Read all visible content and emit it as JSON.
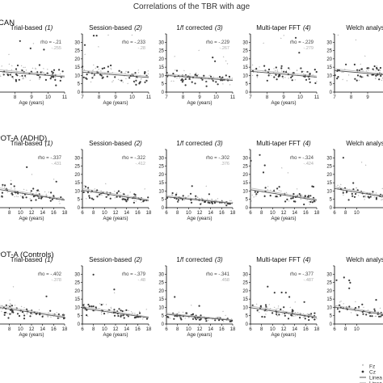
{
  "figure": {
    "title": "Correlations of the TBR with age",
    "legend": [
      {
        "label": "Fz",
        "marker": "star",
        "color": "#888888"
      },
      {
        "label": "Cz",
        "marker": "circle",
        "color": "#333333"
      },
      {
        "label": "Linea",
        "marker": "line",
        "color": "#555555"
      },
      {
        "label": "Linea",
        "marker": "line",
        "color": "#999999"
      }
    ],
    "colors": {
      "fz": "#999999",
      "cz": "#3a3a3a",
      "fit_cz": "#555555",
      "fit_fz": "#bbbbbb"
    }
  },
  "chart_data": [
    {
      "type": "scatter",
      "row": "CAN",
      "title": "Trial-based",
      "number": "(1)",
      "rho_label": "rho = -.21",
      "rho_sub": "-.255",
      "xlabel": "Age (years)",
      "xlim": [
        7,
        11
      ],
      "ylim": [
        0,
        35
      ],
      "xticks": [
        8,
        9,
        10,
        11
      ],
      "yticks": [
        0,
        5,
        10,
        15,
        20,
        25,
        30,
        35
      ],
      "trend": {
        "x": [
          7,
          11
        ],
        "y": [
          12.5,
          9.2
        ]
      },
      "trend_fz": {
        "x": [
          7,
          11
        ],
        "y": [
          13.5,
          9.8
        ]
      }
    },
    {
      "type": "scatter",
      "row": "CAN",
      "title": "Session-based",
      "number": "(2)",
      "rho_label": "rho = -.233",
      "rho_sub": "-.28",
      "xlabel": "Age (years)",
      "xlim": [
        7,
        11
      ],
      "ylim": [
        0,
        35
      ],
      "xticks": [
        7,
        8,
        9,
        10,
        11
      ],
      "yticks": [
        0,
        5,
        10,
        15,
        20,
        25,
        30,
        35
      ],
      "trend": {
        "x": [
          7,
          11
        ],
        "y": [
          12.0,
          8.8
        ]
      },
      "trend_fz": {
        "x": [
          7,
          11
        ],
        "y": [
          13.0,
          9.5
        ]
      }
    },
    {
      "type": "scatter",
      "row": "CAN",
      "title": "1/f corrected",
      "number": "(3)",
      "rho_label": "rho = -.229",
      "rho_sub": "-.267",
      "xlabel": "Age (years)",
      "xlim": [
        7,
        11
      ],
      "ylim": [
        0,
        35
      ],
      "xticks": [
        7,
        8,
        9,
        10,
        11
      ],
      "yticks": [
        0,
        5,
        10,
        15,
        20,
        25,
        30,
        35
      ],
      "trend": {
        "x": [
          7,
          11
        ],
        "y": [
          10.0,
          7.0
        ]
      },
      "trend_fz": {
        "x": [
          7,
          11
        ],
        "y": [
          10.8,
          7.6
        ]
      }
    },
    {
      "type": "scatter",
      "row": "CAN",
      "title": "Multi-taper FFT",
      "number": "(4)",
      "rho_label": "rho = -.229",
      "rho_sub": "-.279",
      "xlabel": "Age (years)",
      "xlim": [
        7,
        11
      ],
      "ylim": [
        0,
        35
      ],
      "xticks": [
        7,
        8,
        9,
        10,
        11
      ],
      "yticks": [
        0,
        5,
        10,
        15,
        20,
        25,
        30,
        35
      ],
      "trend": {
        "x": [
          7,
          11
        ],
        "y": [
          12.5,
          9.0
        ]
      },
      "trend_fz": {
        "x": [
          7,
          11
        ],
        "y": [
          13.5,
          9.7
        ]
      }
    },
    {
      "type": "scatter",
      "row": "CAN",
      "title": "Welch analysis",
      "number": "",
      "rho_label": "",
      "rho_sub": "",
      "xlabel": "",
      "xlim": [
        7,
        11
      ],
      "ylim": [
        0,
        35
      ],
      "xticks": [
        7,
        8,
        9
      ],
      "yticks": [
        0,
        5,
        10,
        15,
        20,
        25,
        30,
        35
      ],
      "trend": {
        "x": [
          7,
          11
        ],
        "y": [
          13.0,
          9.5
        ]
      },
      "trend_fz": {
        "x": [
          7,
          11
        ],
        "y": [
          14.0,
          10.0
        ]
      }
    },
    {
      "type": "scatter",
      "row": "SPOT-A (ADHD)",
      "title": "Trial-based",
      "number": "(1)",
      "rho_label": "rho = -.337",
      "rho_sub": "-.431",
      "xlabel": "Age (years)",
      "xlim": [
        6,
        18
      ],
      "ylim": [
        0,
        35
      ],
      "xticks": [
        6,
        8,
        10,
        12,
        14,
        16,
        18
      ],
      "yticks": [
        0,
        5,
        10,
        15,
        20,
        25,
        30,
        35
      ],
      "trend": {
        "x": [
          6,
          18
        ],
        "y": [
          11.0,
          4.5
        ]
      },
      "trend_fz": {
        "x": [
          6,
          18
        ],
        "y": [
          12.0,
          5.0
        ]
      }
    },
    {
      "type": "scatter",
      "row": "SPOT-A (ADHD)",
      "title": "Session-based",
      "number": "(2)",
      "rho_label": "rho = -.322",
      "rho_sub": "-.412",
      "xlabel": "Age (years)",
      "xlim": [
        6,
        18
      ],
      "ylim": [
        0,
        35
      ],
      "xticks": [
        6,
        8,
        10,
        12,
        14,
        16,
        18
      ],
      "yticks": [
        0,
        5,
        10,
        15,
        20,
        25,
        30,
        35
      ],
      "trend": {
        "x": [
          6,
          18
        ],
        "y": [
          10.5,
          4.2
        ]
      },
      "trend_fz": {
        "x": [
          6,
          18
        ],
        "y": [
          11.5,
          4.8
        ]
      }
    },
    {
      "type": "scatter",
      "row": "SPOT-A (ADHD)",
      "title": "1/f corrected",
      "number": "(3)",
      "rho_label": "rho = -.302",
      "rho_sub": ".376",
      "xlabel": "Age (years)",
      "xlim": [
        6,
        18
      ],
      "ylim": [
        0,
        35
      ],
      "xticks": [
        6,
        8,
        10,
        12,
        14,
        16,
        18
      ],
      "yticks": [
        0,
        5,
        10,
        15,
        20,
        25,
        30,
        35
      ],
      "trend": {
        "x": [
          6,
          18
        ],
        "y": [
          6.5,
          2.5
        ]
      },
      "trend_fz": {
        "x": [
          6,
          18
        ],
        "y": [
          7.2,
          2.9
        ]
      }
    },
    {
      "type": "scatter",
      "row": "SPOT-A (ADHD)",
      "title": "Multi-taper FFT",
      "number": "(4)",
      "rho_label": "rho = -.324",
      "rho_sub": "-.424",
      "xlabel": "Age (years)",
      "xlim": [
        6,
        18
      ],
      "ylim": [
        0,
        35
      ],
      "xticks": [
        6,
        8,
        10,
        12,
        14,
        16,
        18
      ],
      "yticks": [
        0,
        5,
        10,
        15,
        20,
        25,
        30,
        35
      ],
      "trend": {
        "x": [
          6,
          18
        ],
        "y": [
          10.8,
          4.4
        ]
      },
      "trend_fz": {
        "x": [
          6,
          18
        ],
        "y": [
          11.8,
          5.0
        ]
      }
    },
    {
      "type": "scatter",
      "row": "SPOT-A (ADHD)",
      "title": "Welch analysis",
      "number": "",
      "rho_label": "",
      "rho_sub": "",
      "xlabel": "",
      "xlim": [
        6,
        18
      ],
      "ylim": [
        0,
        35
      ],
      "xticks": [
        6,
        8,
        10
      ],
      "yticks": [
        0,
        5,
        10,
        15,
        20,
        25,
        30,
        35
      ],
      "trend": {
        "x": [
          6,
          18
        ],
        "y": [
          11.5,
          4.8
        ]
      },
      "trend_fz": {
        "x": [
          6,
          18
        ],
        "y": [
          12.5,
          5.3
        ]
      }
    },
    {
      "type": "scatter",
      "row": "SPOT-A (Controls)",
      "title": "Trial-based",
      "number": "(1)",
      "rho_label": "rho = -.402",
      "rho_sub": "-.378",
      "xlabel": "Age (years)",
      "xlim": [
        6,
        18
      ],
      "ylim": [
        0,
        35
      ],
      "xticks": [
        6,
        8,
        10,
        12,
        14,
        16,
        18
      ],
      "yticks": [
        0,
        5,
        10,
        15,
        20,
        25,
        30,
        35
      ],
      "trend": {
        "x": [
          6,
          18
        ],
        "y": [
          10.0,
          4.0
        ]
      },
      "trend_fz": {
        "x": [
          6,
          18
        ],
        "y": [
          11.0,
          4.6
        ]
      }
    },
    {
      "type": "scatter",
      "row": "SPOT-A (Controls)",
      "title": "Session-based",
      "number": "(2)",
      "rho_label": "rho = -.379",
      "rho_sub": "-.48",
      "xlabel": "Age (years)",
      "xlim": [
        6,
        18
      ],
      "ylim": [
        0,
        35
      ],
      "xticks": [
        6,
        8,
        10,
        12,
        14,
        16,
        18
      ],
      "yticks": [
        0,
        5,
        10,
        15,
        20,
        25,
        30,
        35
      ],
      "trend": {
        "x": [
          6,
          18
        ],
        "y": [
          9.5,
          3.8
        ]
      },
      "trend_fz": {
        "x": [
          6,
          18
        ],
        "y": [
          10.5,
          4.3
        ]
      }
    },
    {
      "type": "scatter",
      "row": "SPOT-A (Controls)",
      "title": "1/f corrected",
      "number": "(3)",
      "rho_label": "rho = -.341",
      "rho_sub": ".458",
      "xlabel": "Age (years)",
      "xlim": [
        6,
        18
      ],
      "ylim": [
        0,
        35
      ],
      "xticks": [
        6,
        8,
        10,
        12,
        14,
        16,
        18
      ],
      "yticks": [
        0,
        5,
        10,
        15,
        20,
        25,
        30,
        35
      ],
      "trend": {
        "x": [
          6,
          18
        ],
        "y": [
          5.8,
          2.2
        ]
      },
      "trend_fz": {
        "x": [
          6,
          18
        ],
        "y": [
          6.5,
          2.6
        ]
      }
    },
    {
      "type": "scatter",
      "row": "SPOT-A (Controls)",
      "title": "Multi-taper FFT",
      "number": "(4)",
      "rho_label": "rho = -.377",
      "rho_sub": "-.487",
      "xlabel": "Age (years)",
      "xlim": [
        6,
        18
      ],
      "ylim": [
        0,
        35
      ],
      "xticks": [
        6,
        8,
        10,
        12,
        14,
        16,
        18
      ],
      "yticks": [
        0,
        5,
        10,
        15,
        20,
        25,
        30,
        35
      ],
      "trend": {
        "x": [
          6,
          18
        ],
        "y": [
          9.8,
          3.9
        ]
      },
      "trend_fz": {
        "x": [
          6,
          18
        ],
        "y": [
          10.8,
          4.4
        ]
      }
    },
    {
      "type": "scatter",
      "row": "SPOT-A (Controls)",
      "title": "Welch analysis",
      "number": "",
      "rho_label": "",
      "rho_sub": "",
      "xlabel": "",
      "xlim": [
        6,
        18
      ],
      "ylim": [
        0,
        35
      ],
      "xticks": [
        6,
        8,
        10
      ],
      "yticks": [
        0,
        5,
        10,
        15,
        20,
        25,
        30,
        35
      ],
      "trend": {
        "x": [
          6,
          18
        ],
        "y": [
          10.2,
          4.1
        ]
      },
      "trend_fz": {
        "x": [
          6,
          18
        ],
        "y": [
          11.2,
          4.6
        ]
      }
    }
  ]
}
